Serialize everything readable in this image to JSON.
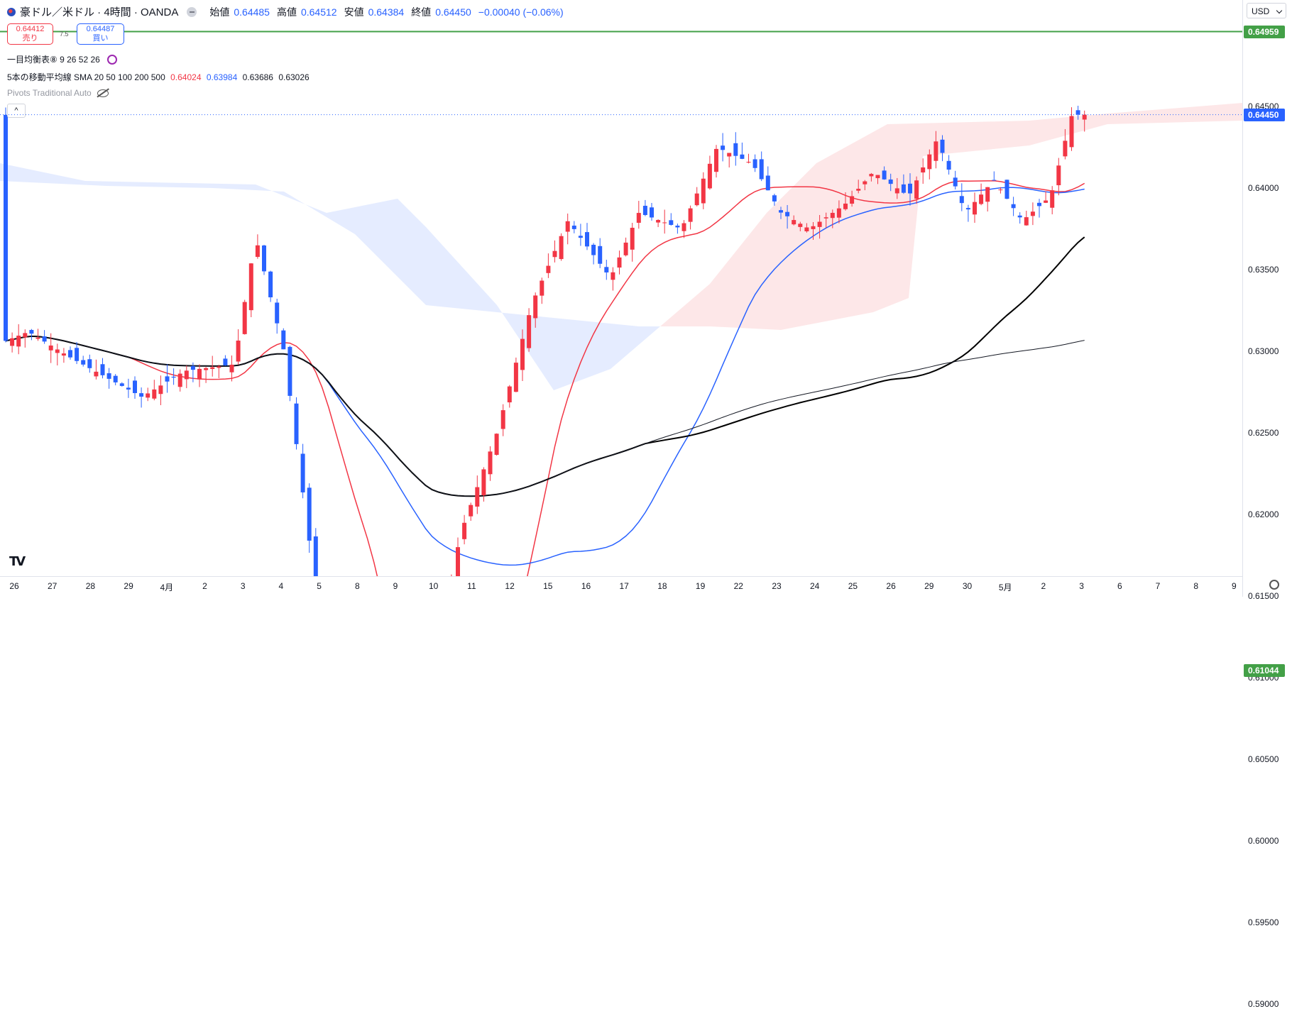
{
  "header": {
    "symbol_title": "豪ドル／米ドル · 4時間 · OANDA",
    "open_label": "始値",
    "open": "0.64485",
    "high_label": "高値",
    "high": "0.64512",
    "low_label": "安値",
    "low": "0.64384",
    "close_label": "終値",
    "close": "0.64450",
    "change": "−0.00040 (−0.06%)"
  },
  "trade": {
    "sell_price": "0.64412",
    "sell_label": "売り",
    "buy_price": "0.64487",
    "buy_label": "買い",
    "spread": "7.5"
  },
  "indicators": {
    "ichimoku": "一目均衡表⑧ 9 26 52 26",
    "sma_label": "5本の移動平均線 SMA 20 50 100 200 500",
    "sma_values": [
      "0.64024",
      "0.63984",
      "0.63686",
      "0.63026"
    ],
    "pivots": "Pivots Traditional Auto"
  },
  "currency": "USD",
  "colors": {
    "up": "#f23645",
    "down": "#2962ff",
    "hline": "#43a047",
    "sma20": "#f23645",
    "sma50": "#2962ff",
    "sma100": "#000000",
    "sma200": "#131722"
  },
  "chart_data": {
    "type": "candlestick",
    "y_ticks": [
      "0.64500",
      "0.64000",
      "0.63500",
      "0.63000",
      "0.62500",
      "0.62000",
      "0.61500",
      "0.61000",
      "0.60500",
      "0.60000",
      "0.59500",
      "0.59000"
    ],
    "x_ticks": [
      "26",
      "27",
      "28",
      "29",
      "4月",
      "2",
      "3",
      "4",
      "5",
      "8",
      "9",
      "10",
      "11",
      "12",
      "15",
      "16",
      "17",
      "18",
      "19",
      "22",
      "23",
      "24",
      "25",
      "26",
      "29",
      "30",
      "5月",
      "2",
      "3",
      "6",
      "7",
      "8",
      "9"
    ],
    "horizontal_lines": [
      {
        "label": "0.64959",
        "value": 0.64959
      },
      {
        "label": "0.61044",
        "value": 0.61044
      }
    ],
    "last_price_label": "0.64450",
    "last_price": 0.6445,
    "ylim": [
      0.5885,
      0.6497
    ]
  }
}
